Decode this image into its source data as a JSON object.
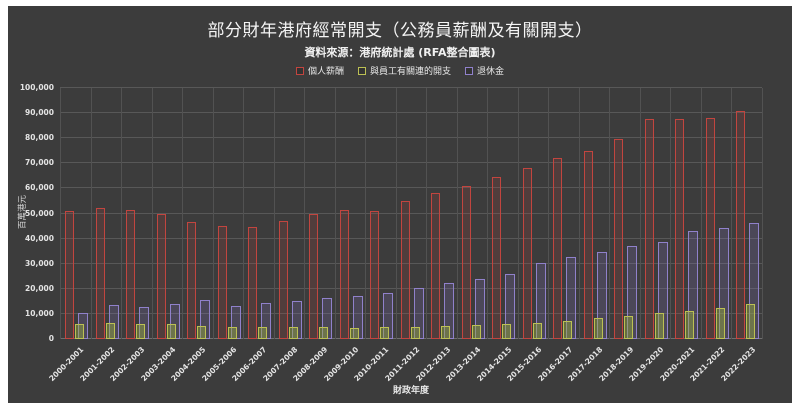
{
  "page": {
    "background": "#ffffff",
    "chart_background": "#3c3c3c",
    "gridline_color": "#585858"
  },
  "chart_data": {
    "type": "bar",
    "title": "部分財年港府經常開支（公務員薪酬及有關開支）",
    "subtitle": "資料來源：港府統計處 (RFA整合圖表)",
    "xlabel": "財政年度",
    "ylabel": "百萬港元",
    "ylim": [
      0,
      100000
    ],
    "grid": true,
    "legend_position": "top-center",
    "y_ticks": [
      "0",
      "10,000",
      "20,000",
      "30,000",
      "40,000",
      "50,000",
      "60,000",
      "70,000",
      "80,000",
      "90,000",
      "100,000"
    ],
    "categories": [
      "2000-2001",
      "2001-2002",
      "2002-2003",
      "2003-2004",
      "2004-2005",
      "2005-2006",
      "2006-2007",
      "2007-2008",
      "2008-2009",
      "2009-2010",
      "2010-2011",
      "2011-2012",
      "2012-2013",
      "2013-2014",
      "2014-2015",
      "2015-2016",
      "2016-2017",
      "2017-2018",
      "2018-2019",
      "2019-2020",
      "2020-2021",
      "2021-2022",
      "2022-2023"
    ],
    "series": [
      {
        "name": "個人薪酬",
        "color": "#c2453f",
        "fill": "rgba(194,69,63,0.16)",
        "values": [
          50900,
          52300,
          51400,
          49700,
          46700,
          45000,
          44800,
          47000,
          50000,
          51300,
          51100,
          55000,
          58000,
          61000,
          64700,
          68000,
          72000,
          74900,
          79700,
          87600,
          87500,
          88200,
          90700
        ]
      },
      {
        "name": "與員工有關連的開支",
        "color": "#bcc054",
        "fill": "rgba(150,170,60,0.45)",
        "values": [
          5900,
          6200,
          5900,
          5900,
          5300,
          4900,
          4700,
          4700,
          4700,
          4500,
          4600,
          4700,
          5200,
          5600,
          6000,
          6500,
          7300,
          8200,
          9200,
          10200,
          11200,
          12200,
          13800
        ]
      },
      {
        "name": "退休金",
        "color": "#9081cb",
        "fill": "rgba(130,115,190,0.22)",
        "values": [
          10200,
          13500,
          12900,
          13900,
          15500,
          13000,
          14400,
          15000,
          16500,
          17100,
          18400,
          20200,
          22200,
          23900,
          26000,
          30100,
          32500,
          34800,
          37200,
          38600,
          43000,
          44100,
          46100
        ]
      }
    ]
  }
}
